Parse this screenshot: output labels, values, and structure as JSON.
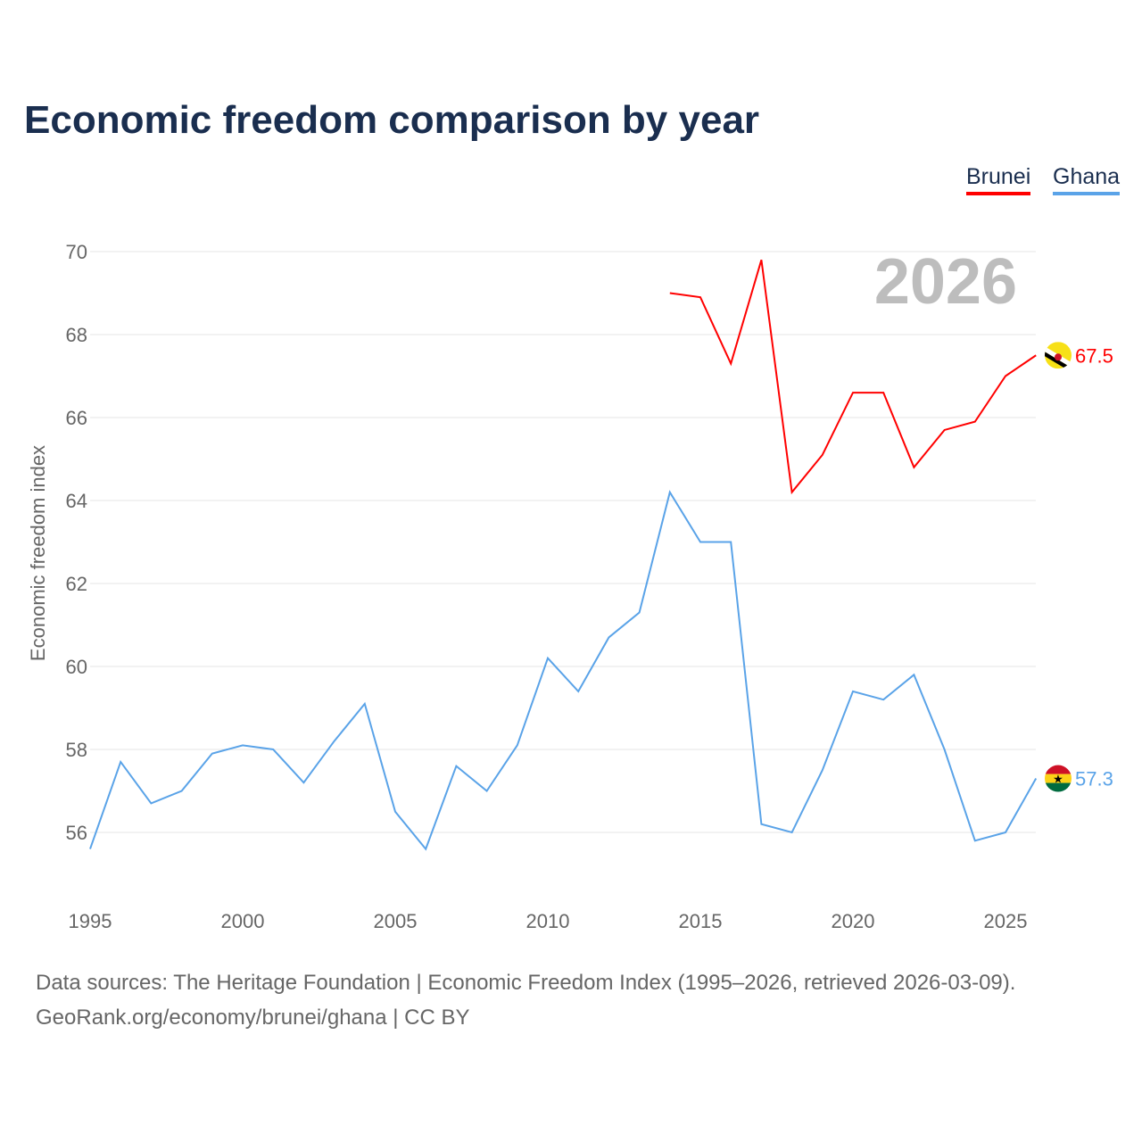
{
  "title": "Economic freedom comparison by year",
  "legend": [
    {
      "name": "Brunei",
      "color": "#ff0000"
    },
    {
      "name": "Ghana",
      "color": "#5aa3e8"
    }
  ],
  "source_line1": "Data sources: The Heritage Foundation | Economic Freedom Index (1995–2026, retrieved 2026-03-09).",
  "source_line2": "GeoRank.org/economy/brunei/ghana | CC BY",
  "chart_data": {
    "type": "line",
    "title": "Economic freedom comparison by year",
    "xlabel": "",
    "ylabel": "Economic freedom index",
    "year_label": "2026",
    "xlim": [
      1995,
      2026
    ],
    "ylim": [
      55,
      70.5
    ],
    "yticks": [
      56,
      58,
      60,
      62,
      64,
      66,
      68,
      70
    ],
    "xticks": [
      1995,
      2000,
      2005,
      2010,
      2015,
      2020,
      2025
    ],
    "grid": true,
    "legend_position": "top-right",
    "series": [
      {
        "name": "Brunei",
        "color": "#ff0000",
        "end_label": "67.5",
        "flag": "brunei-flag",
        "x": [
          2014,
          2015,
          2016,
          2017,
          2018,
          2019,
          2020,
          2021,
          2022,
          2023,
          2024,
          2025,
          2026
        ],
        "values": [
          69.0,
          68.9,
          67.3,
          69.8,
          64.2,
          65.1,
          66.6,
          66.6,
          64.8,
          65.7,
          65.9,
          67.0,
          67.5
        ]
      },
      {
        "name": "Ghana",
        "color": "#5aa3e8",
        "end_label": "57.3",
        "flag": "ghana-flag",
        "x": [
          1995,
          1996,
          1997,
          1998,
          1999,
          2000,
          2001,
          2002,
          2003,
          2004,
          2005,
          2006,
          2007,
          2008,
          2009,
          2010,
          2011,
          2012,
          2013,
          2014,
          2015,
          2016,
          2017,
          2018,
          2019,
          2020,
          2021,
          2022,
          2023,
          2024,
          2025,
          2026
        ],
        "values": [
          55.6,
          57.7,
          56.7,
          57.0,
          57.9,
          58.1,
          58.0,
          57.2,
          58.2,
          59.1,
          56.5,
          55.6,
          57.6,
          57.0,
          58.1,
          60.2,
          59.4,
          60.7,
          61.3,
          64.2,
          63.0,
          63.0,
          56.2,
          56.0,
          57.5,
          59.4,
          59.2,
          59.8,
          58.0,
          55.8,
          56.0,
          57.3
        ]
      }
    ]
  }
}
